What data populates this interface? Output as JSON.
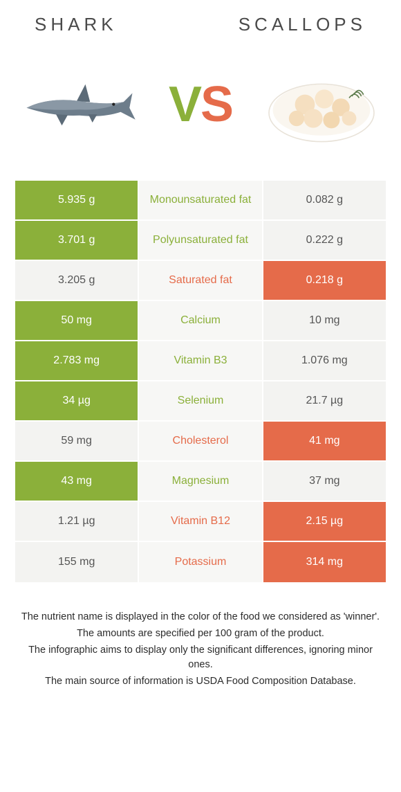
{
  "header": {
    "left_title": "SHARK",
    "right_title": "SCALLOPS"
  },
  "vs": {
    "v": "V",
    "s": "S"
  },
  "colors": {
    "left_win": "#8bb03a",
    "right_win": "#e56b4a",
    "lose_bg": "#f3f3f1",
    "mid_bg": "#f7f7f5",
    "text_dark": "#555"
  },
  "table": {
    "rows": [
      {
        "left": "5.935 g",
        "label": "Monounsaturated fat",
        "right": "0.082 g",
        "winner": "left"
      },
      {
        "left": "3.701 g",
        "label": "Polyunsaturated fat",
        "right": "0.222 g",
        "winner": "left"
      },
      {
        "left": "3.205 g",
        "label": "Saturated fat",
        "right": "0.218 g",
        "winner": "right"
      },
      {
        "left": "50 mg",
        "label": "Calcium",
        "right": "10 mg",
        "winner": "left"
      },
      {
        "left": "2.783 mg",
        "label": "Vitamin B3",
        "right": "1.076 mg",
        "winner": "left"
      },
      {
        "left": "34 µg",
        "label": "Selenium",
        "right": "21.7 µg",
        "winner": "left"
      },
      {
        "left": "59 mg",
        "label": "Cholesterol",
        "right": "41 mg",
        "winner": "right"
      },
      {
        "left": "43 mg",
        "label": "Magnesium",
        "right": "37 mg",
        "winner": "left"
      },
      {
        "left": "1.21 µg",
        "label": "Vitamin B12",
        "right": "2.15 µg",
        "winner": "right"
      },
      {
        "left": "155 mg",
        "label": "Potassium",
        "right": "314 mg",
        "winner": "right"
      }
    ]
  },
  "footer": {
    "line1": "The nutrient name is displayed in the color of the food we considered as 'winner'.",
    "line2": "The amounts are specified per 100 gram of the product.",
    "line3": "The infographic aims to display only the significant differences, ignoring minor ones.",
    "line4": "The main source of information is USDA Food Composition Database."
  }
}
